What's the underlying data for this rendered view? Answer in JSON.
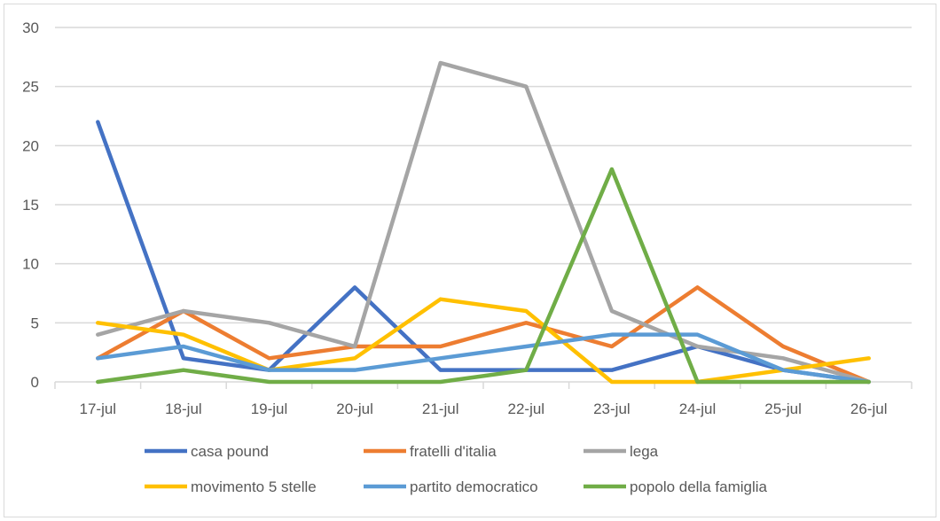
{
  "chart_data": {
    "type": "line",
    "title": "",
    "xlabel": "",
    "ylabel": "",
    "ylim": [
      0,
      30
    ],
    "yticks": [
      0,
      5,
      10,
      15,
      20,
      25,
      30
    ],
    "categories": [
      "17-jul",
      "18-jul",
      "19-jul",
      "20-jul",
      "21-jul",
      "22-jul",
      "23-jul",
      "24-jul",
      "25-jul",
      "26-jul"
    ],
    "grid": true,
    "legend": "bottom",
    "series": [
      {
        "name": "casa pound",
        "color": "#4472c4",
        "values": [
          22,
          2,
          1,
          8,
          1,
          1,
          1,
          3,
          1,
          0
        ]
      },
      {
        "name": "fratelli d'italia",
        "color": "#ed7d31",
        "values": [
          2,
          6,
          2,
          3,
          3,
          5,
          3,
          8,
          3,
          0
        ]
      },
      {
        "name": "lega",
        "color": "#a5a5a5",
        "values": [
          4,
          6,
          5,
          3,
          27,
          25,
          6,
          3,
          2,
          0
        ]
      },
      {
        "name": "movimento 5 stelle",
        "color": "#ffc000",
        "values": [
          5,
          4,
          1,
          2,
          7,
          6,
          0,
          0,
          1,
          2
        ]
      },
      {
        "name": "partito democratico",
        "color": "#5b9bd5",
        "values": [
          2,
          3,
          1,
          1,
          2,
          3,
          4,
          4,
          1,
          0
        ]
      },
      {
        "name": "popolo della famiglia",
        "color": "#70ad47",
        "values": [
          0,
          1,
          0,
          0,
          0,
          1,
          18,
          0,
          0,
          0
        ]
      }
    ]
  }
}
